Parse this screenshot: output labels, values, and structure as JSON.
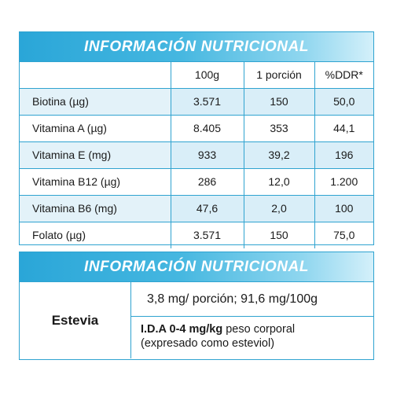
{
  "table1": {
    "title": "INFORMACIÓN NUTRICIONAL",
    "headers": [
      "",
      "100g",
      "1 porción",
      "%DDR*"
    ],
    "rows": [
      [
        "Biotina (µg)",
        "3.571",
        "150",
        "50,0"
      ],
      [
        "Vitamina A (µg)",
        "8.405",
        "353",
        "44,1"
      ],
      [
        "Vitamina E (mg)",
        "933",
        "39,2",
        "196"
      ],
      [
        "Vitamina B12 (µg)",
        "286",
        "12,0",
        "1.200"
      ],
      [
        "Vitamina B6 (mg)",
        "47,6",
        "2,0",
        "100"
      ],
      [
        "Folato (µg)",
        "3.571",
        "150",
        "75,0"
      ]
    ]
  },
  "table2": {
    "title": "INFORMACIÓN NUTRICIONAL",
    "name": "Estevia",
    "amount": "3,8 mg/ porción; 91,6 mg/100g",
    "ida_bold": "I.D.A 0-4 mg/kg",
    "ida_rest": " peso corporal",
    "ida_line2": "(expresado como esteviol)"
  },
  "colors": {
    "border": "#2fa3d0",
    "banner_start": "#2aa6d8",
    "banner_end": "#d4f0fa",
    "row_shade": "#d9eef8"
  }
}
